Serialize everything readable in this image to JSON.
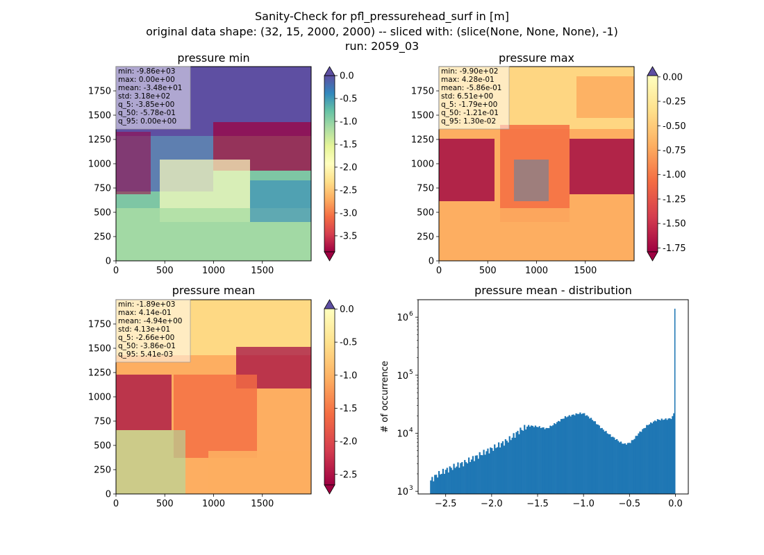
{
  "figure": {
    "title_lines": [
      "Sanity-Check for pfl_pressurehead_surf in [m]",
      "original data shape: (32, 15, 2000, 2000) -- sliced with: (slice(None, None, None), -1)",
      "run: 2059_03"
    ]
  },
  "chart_data": [
    {
      "type": "heatmap",
      "title": "pressure min",
      "colormap": "Spectral",
      "colorbar_extend": "both",
      "xlim": [
        0,
        2000
      ],
      "ylim": [
        0,
        2000
      ],
      "xticks": [
        0,
        500,
        1000,
        1500
      ],
      "yticks": [
        0,
        250,
        500,
        750,
        1000,
        1250,
        1500,
        1750
      ],
      "clim": [
        -3.85,
        0.0
      ],
      "colorbar_ticks": [
        "0.0",
        "-0.5",
        "-1.0",
        "-1.5",
        "-2.0",
        "-2.5",
        "-3.0",
        "-3.5"
      ],
      "colorbar_tick_values": [
        0.0,
        -0.5,
        -1.0,
        -1.5,
        -2.0,
        -2.5,
        -3.0,
        -3.5
      ],
      "stats_box_location": "top-left",
      "stats": [
        "min: -9.86e+03",
        "max: 0.00e+00",
        "mean: -3.48e+01",
        "std: 3.18e+02",
        "q_5: -3.85e+00",
        "q_50: -5.78e-01",
        "q_95: 0.00e+00"
      ]
    },
    {
      "type": "heatmap",
      "title": "pressure max",
      "colormap": "Spectral",
      "colorbar_extend": "both",
      "xlim": [
        0,
        2000
      ],
      "ylim": [
        0,
        2000
      ],
      "xticks": [
        0,
        500,
        1000,
        1500
      ],
      "yticks": [
        0,
        250,
        500,
        750,
        1000,
        1250,
        1500,
        1750
      ],
      "clim": [
        -1.79,
        0.013
      ],
      "colorbar_ticks": [
        "0.00",
        "-0.25",
        "-0.50",
        "-0.75",
        "-1.00",
        "-1.25",
        "-1.50",
        "-1.75"
      ],
      "colorbar_tick_values": [
        0.0,
        -0.25,
        -0.5,
        -0.75,
        -1.0,
        -1.25,
        -1.5,
        -1.75
      ],
      "stats_box_location": "top-left",
      "stats": [
        "min: -9.90e+02",
        "max: 4.28e-01",
        "mean: -5.86e-01",
        "std: 6.51e+00",
        "q_5: -1.79e+00",
        "q_50: -1.21e-01",
        "q_95: 1.30e-02"
      ]
    },
    {
      "type": "heatmap",
      "title": "pressure mean",
      "colormap": "Spectral",
      "colorbar_extend": "both",
      "xlim": [
        0,
        2000
      ],
      "ylim": [
        0,
        2000
      ],
      "xticks": [
        0,
        500,
        1000,
        1500
      ],
      "yticks": [
        0,
        250,
        500,
        750,
        1000,
        1250,
        1500,
        1750
      ],
      "clim": [
        -2.66,
        0.0054
      ],
      "colorbar_ticks": [
        "0.0",
        "-0.5",
        "-1.0",
        "-1.5",
        "-2.0",
        "-2.5"
      ],
      "colorbar_tick_values": [
        0.0,
        -0.5,
        -1.0,
        -1.5,
        -2.0,
        -2.5
      ],
      "stats_box_location": "top-left",
      "stats": [
        "min: -1.89e+03",
        "max: 4.14e-01",
        "mean: -4.94e+00",
        "std: 4.13e+01",
        "q_5: -2.66e+00",
        "q_50: -3.86e-01",
        "q_95: 5.41e-03"
      ]
    },
    {
      "type": "bar",
      "subtype": "histogram",
      "title": "pressure mean - distribution",
      "xlabel": "",
      "ylabel": "# of occurrence",
      "yscale": "log",
      "xlim": [
        -2.8,
        0.14
      ],
      "ylim": [
        900,
        2000000
      ],
      "xticks": [
        -2.5,
        -2.0,
        -1.5,
        -1.0,
        -0.5,
        0.0
      ],
      "xtick_labels": [
        "−2.5",
        "−2.0",
        "−1.5",
        "−1.0",
        "−0.5",
        "0.0"
      ],
      "ytick_labels": [
        "10",
        "10",
        "10",
        "10"
      ],
      "ytick_exponents": [
        "3",
        "4",
        "5",
        "6"
      ],
      "ytick_values": [
        1000,
        10000,
        100000,
        1000000
      ],
      "bar_color": "#1f77b4",
      "profile_x": [
        -2.67,
        -2.6,
        -2.5,
        -2.4,
        -2.3,
        -2.2,
        -2.1,
        -2.0,
        -1.9,
        -1.8,
        -1.7,
        -1.6,
        -1.5,
        -1.4,
        -1.3,
        -1.2,
        -1.1,
        -1.05,
        -1.0,
        -0.9,
        -0.8,
        -0.7,
        -0.6,
        -0.55,
        -0.5,
        -0.45,
        -0.4,
        -0.3,
        -0.2,
        -0.1,
        -0.05,
        -0.02,
        -0.01
      ],
      "profile_y": [
        1500,
        1900,
        2300,
        2700,
        3100,
        3700,
        4500,
        5400,
        6500,
        8000,
        11000,
        13500,
        13000,
        12000,
        15000,
        19000,
        21000,
        22000,
        22000,
        17000,
        12000,
        9000,
        7000,
        6500,
        6800,
        8000,
        10000,
        14000,
        17000,
        17500,
        18000,
        20000,
        30000
      ],
      "spike": {
        "x": 0.0,
        "y": 1400000
      }
    }
  ]
}
